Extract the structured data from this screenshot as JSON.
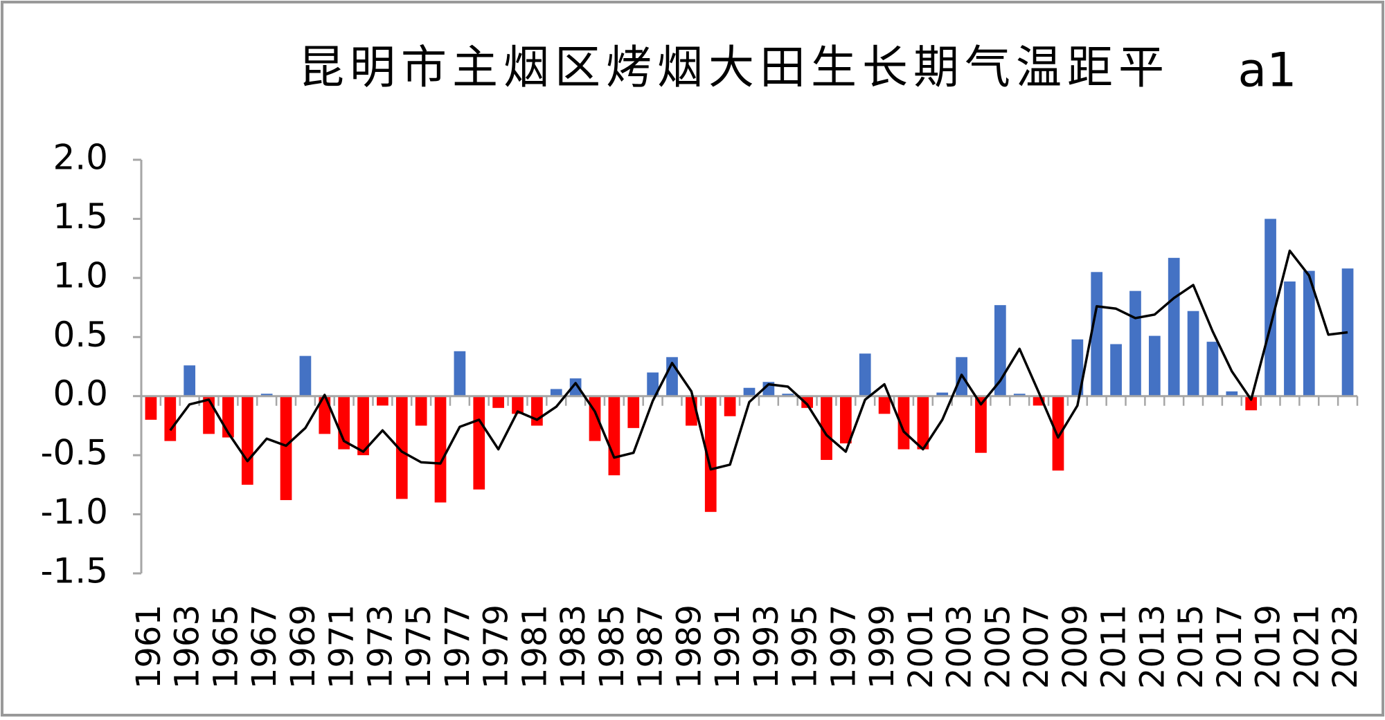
{
  "chart_data": {
    "type": "bar",
    "title": "昆明市主烟区烤烟大田生长期气温距平",
    "panel_label": "a1",
    "categories": [
      "1961",
      null,
      "1963",
      null,
      "1965",
      null,
      "1967",
      null,
      "1969",
      null,
      "1971",
      null,
      "1973",
      null,
      "1975",
      null,
      "1977",
      null,
      "1979",
      null,
      "1981",
      null,
      "1983",
      null,
      "1985",
      null,
      "1987",
      null,
      "1989",
      null,
      "1991",
      null,
      "1993",
      null,
      "1995",
      null,
      "1997",
      null,
      "1999",
      null,
      "2001",
      null,
      "2003",
      null,
      "2005",
      null,
      "2007",
      null,
      "2009",
      null,
      "2011",
      null,
      "2013",
      null,
      "2015",
      null,
      "2017",
      null,
      "2019",
      null,
      "2021",
      null,
      "2023"
    ],
    "series": [
      {
        "type": "bar",
        "positive_color": "#4472c4",
        "negative_color": "#ff0000",
        "values": [
          -0.2,
          -0.38,
          0.26,
          -0.32,
          -0.35,
          -0.75,
          0.02,
          -0.88,
          0.34,
          -0.32,
          -0.45,
          -0.5,
          -0.08,
          -0.87,
          -0.25,
          -0.9,
          0.38,
          -0.79,
          -0.1,
          -0.15,
          -0.25,
          0.06,
          0.15,
          -0.38,
          -0.67,
          -0.27,
          0.2,
          0.33,
          -0.25,
          -0.98,
          -0.17,
          0.07,
          0.12,
          0.02,
          -0.1,
          -0.54,
          -0.4,
          0.36,
          -0.15,
          -0.45,
          -0.45,
          0.03,
          0.33,
          -0.48,
          0.77,
          0.02,
          -0.08,
          -0.63,
          0.48,
          1.05,
          0.44,
          0.89,
          0.51,
          1.17,
          0.72,
          0.46,
          0.04,
          -0.12,
          1.5,
          0.97,
          1.06,
          0,
          1.08
        ]
      },
      {
        "type": "line",
        "color": "#000000",
        "values": [
          null,
          -0.29,
          -0.07,
          -0.03,
          -0.31,
          -0.55,
          -0.36,
          -0.42,
          -0.27,
          0.01,
          -0.38,
          -0.47,
          -0.29,
          -0.47,
          -0.56,
          -0.57,
          -0.26,
          -0.2,
          -0.45,
          -0.13,
          -0.2,
          -0.09,
          0.11,
          -0.13,
          -0.52,
          -0.48,
          -0.04,
          0.28,
          0.04,
          -0.62,
          -0.58,
          -0.05,
          0.1,
          0.08,
          -0.07,
          -0.33,
          -0.47,
          -0.03,
          0.1,
          -0.3,
          -0.45,
          -0.2,
          0.18,
          -0.07,
          0.13,
          0.4,
          0.03,
          -0.35,
          -0.08,
          0.76,
          0.74,
          0.66,
          0.69,
          0.83,
          0.94,
          0.55,
          0.21,
          -0.03,
          0.59,
          1.23,
          1.02,
          0.52,
          0.54
        ]
      }
    ],
    "ylim": [
      -1.5,
      2.0
    ],
    "yticks": [
      -1.5,
      {
        "value": -1,
        "label": "-1.0"
      },
      -0.5,
      {
        "value": 0,
        "label": "0.0"
      },
      0.5,
      {
        "value": 1,
        "label": "1.0"
      },
      1.5,
      {
        "value": 2,
        "label": "2.0"
      }
    ],
    "grid": false
  }
}
